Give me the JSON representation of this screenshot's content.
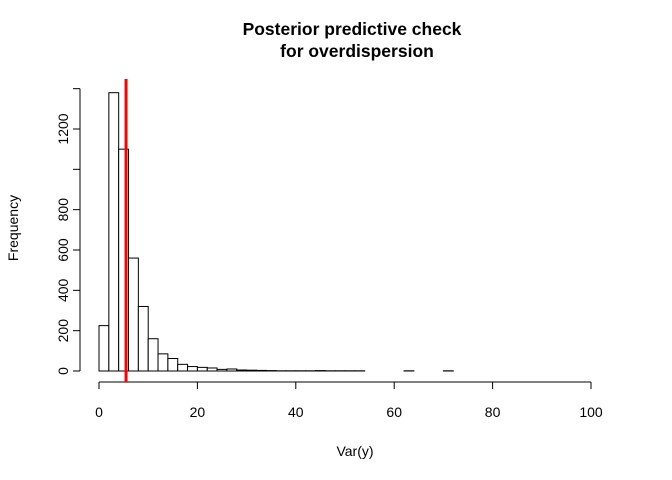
{
  "chart_data": {
    "type": "bar",
    "title": "Posterior predictive check\nfor overdispersion",
    "title_lines": [
      "Posterior predictive check",
      "for overdispersion"
    ],
    "xlabel": "Var(y)",
    "ylabel": "Frequency",
    "bin_width": 2,
    "bin_start": 0,
    "values": [
      225,
      1380,
      1100,
      560,
      320,
      160,
      85,
      62,
      33,
      22,
      18,
      15,
      8,
      10,
      5,
      4,
      3,
      2,
      1,
      1,
      1,
      1,
      2,
      1,
      1,
      1,
      1,
      0,
      0,
      0,
      0,
      1,
      0,
      0,
      0,
      1,
      0,
      0,
      0,
      0,
      0,
      0,
      0,
      0,
      0,
      0,
      0,
      0,
      0,
      0,
      0,
      0
    ],
    "observed_stat": 5.5,
    "observed_stat_color": "#ff0000",
    "xlim": [
      0,
      104
    ],
    "ylim": [
      0,
      1400
    ],
    "x_ticks": [
      0,
      20,
      40,
      60,
      80,
      100
    ],
    "y_ticks": [
      0,
      200,
      400,
      600,
      800,
      1200
    ],
    "grid": false
  }
}
